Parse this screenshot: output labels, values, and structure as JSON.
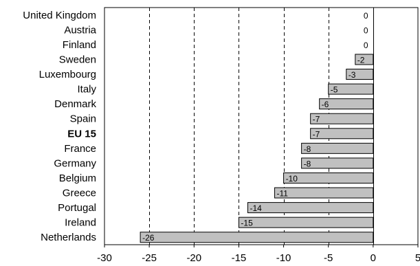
{
  "chart_data": {
    "type": "bar",
    "orientation": "horizontal",
    "categories": [
      "United Kingdom",
      "Austria",
      "Finland",
      "Sweden",
      "Luxembourg",
      "Italy",
      "Denmark",
      "Spain",
      "EU 15",
      "France",
      "Germany",
      "Belgium",
      "Greece",
      "Portugal",
      "Ireland",
      "Netherlands"
    ],
    "values": [
      0,
      0,
      0,
      -2,
      -3,
      -5,
      -6,
      -7,
      -7,
      -8,
      -8,
      -10,
      -11,
      -14,
      -15,
      -26
    ],
    "data_labels": [
      "0",
      "0",
      "0",
      "-2",
      "-3",
      "-5",
      "-6",
      "-7",
      "-7",
      "-8",
      "-8",
      "-10",
      "-11",
      "-14",
      "-15",
      "-26"
    ],
    "bold_categories": [
      "EU 15"
    ],
    "xlim": [
      -30,
      5
    ],
    "x_ticks": [
      -30,
      -25,
      -20,
      -15,
      -10,
      -5,
      0,
      5
    ],
    "x_tick_labels": [
      "-30",
      "-25",
      "-20",
      "-15",
      "-10",
      "-5",
      "0",
      "5"
    ],
    "title": "",
    "xlabel": "",
    "ylabel": "",
    "grid": "vertical dashed",
    "legend": "none",
    "bar_color": "#c0c0c0",
    "bar_edge_color": "#000000",
    "grid_color": "#000000"
  }
}
